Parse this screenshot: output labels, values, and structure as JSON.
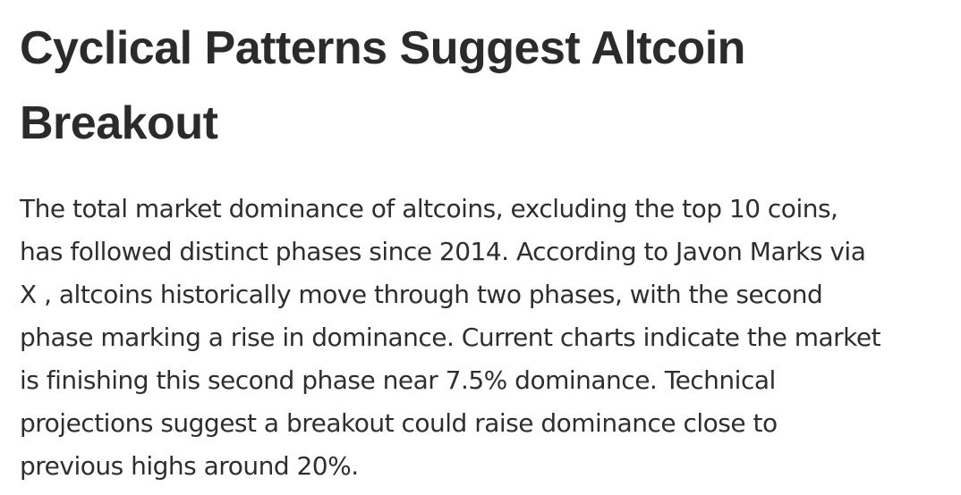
{
  "article": {
    "headline_lines": [
      "Cyclical Patterns Suggest Altcoin",
      "Breakout"
    ],
    "paragraph_lines": [
      "The total market dominance of altcoins, excluding the top 10 coins,",
      "has followed distinct phases since 2014. According to Javon Marks via",
      "X , altcoins historically move through two phases, with the second",
      "phase marking a rise in dominance. Current charts indicate the market",
      "is finishing this second phase near 7.5% dominance. Technical",
      "projections suggest a breakout could raise dominance close to",
      "previous highs around 20%."
    ]
  }
}
